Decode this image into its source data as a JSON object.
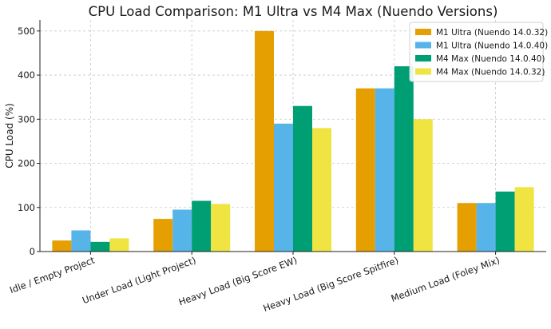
{
  "chart_data": {
    "type": "bar",
    "title": "CPU Load Comparison: M1 Ultra vs M4 Max (Nuendo Versions)",
    "xlabel": "",
    "ylabel": "CPU Load (%)",
    "ylim": [
      0,
      525
    ],
    "yticks": [
      0,
      100,
      200,
      300,
      400,
      500
    ],
    "grid": true,
    "legend_position": "top-right",
    "categories": [
      "Idle / Empty Project",
      "Under Load (Light Project)",
      "Heavy Load (Big Score EW)",
      "Heavy Load (Big Score Spitfire)",
      "Medium Load (Foley Mix)"
    ],
    "series": [
      {
        "name": "M1 Ultra (Nuendo 14.0.32)",
        "color": "#E69F00",
        "values": [
          25,
          74,
          500,
          370,
          110
        ]
      },
      {
        "name": "M1 Ultra (Nuendo 14.0.40)",
        "color": "#56B4E9",
        "values": [
          48,
          95,
          290,
          370,
          110
        ]
      },
      {
        "name": "M4 Max (Nuendo 14.0.40)",
        "color": "#009E73",
        "values": [
          22,
          115,
          330,
          420,
          136
        ]
      },
      {
        "name": "M4 Max (Nuendo 14.0.32)",
        "color": "#F0E442",
        "values": [
          30,
          108,
          280,
          300,
          146
        ]
      }
    ]
  }
}
